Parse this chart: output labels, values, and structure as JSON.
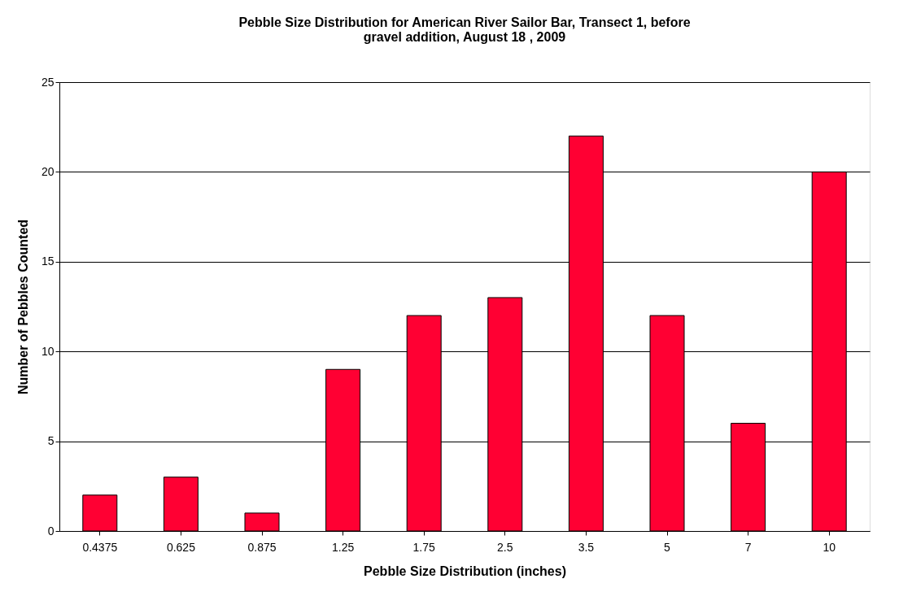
{
  "chart_data": {
    "type": "bar",
    "title": [
      "Pebble Size Distribution for American River Sailor Bar, Transect 1,  before",
      "gravel addition,  August 18 , 2009"
    ],
    "xlabel": "Pebble Size Distribution (inches)",
    "ylabel": "Number of Pebbles Counted",
    "categories": [
      "0.4375",
      "0.625",
      "0.875",
      "1.25",
      "1.75",
      "2.5",
      "3.5",
      "5",
      "7",
      "10"
    ],
    "values": [
      2,
      3,
      1,
      9,
      12,
      13,
      22,
      12,
      6,
      20
    ],
    "color": "#ff0033",
    "ylim": [
      0,
      25
    ],
    "yticks": [
      0,
      5,
      10,
      15,
      20,
      25
    ],
    "grid": "y"
  }
}
